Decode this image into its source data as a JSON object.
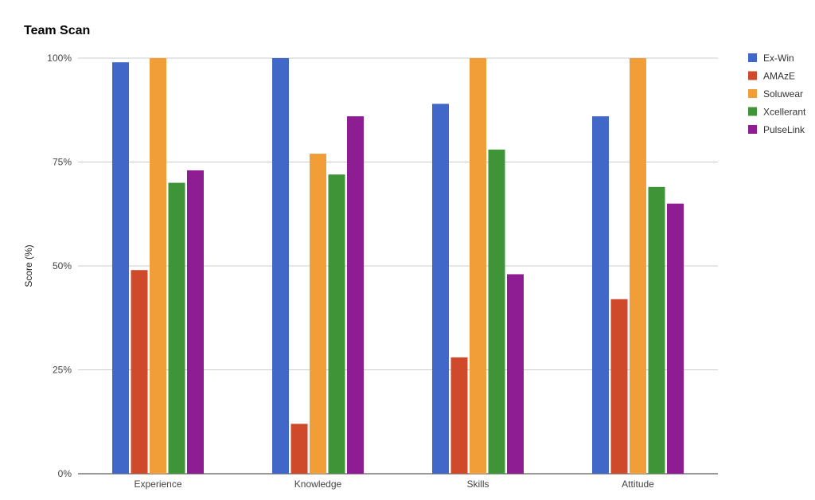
{
  "chart_data": {
    "type": "bar",
    "title": "Team Scan",
    "xlabel": "",
    "ylabel": "Score (%)",
    "ylim": [
      0,
      100
    ],
    "yticks": [
      {
        "value": 0,
        "label": "0%"
      },
      {
        "value": 25,
        "label": "25%"
      },
      {
        "value": 50,
        "label": "50%"
      },
      {
        "value": 75,
        "label": "75%"
      },
      {
        "value": 100,
        "label": "100%"
      }
    ],
    "categories": [
      "Experience",
      "Knowledge",
      "Skills",
      "Attitude"
    ],
    "series": [
      {
        "name": "Ex-Win",
        "color": "#4167C9",
        "values": [
          99,
          100,
          89,
          86
        ]
      },
      {
        "name": "AMAzE",
        "color": "#CF4A2B",
        "values": [
          49,
          12,
          28,
          42
        ]
      },
      {
        "name": "Soluwear",
        "color": "#F29E38",
        "values": [
          100,
          77,
          100,
          100
        ]
      },
      {
        "name": "Xcellerant",
        "color": "#3F9437",
        "values": [
          70,
          72,
          78,
          69
        ]
      },
      {
        "name": "PulseLink",
        "color": "#8E1D93",
        "values": [
          73,
          86,
          48,
          65
        ]
      }
    ],
    "grid": true,
    "legend_position": "right"
  }
}
